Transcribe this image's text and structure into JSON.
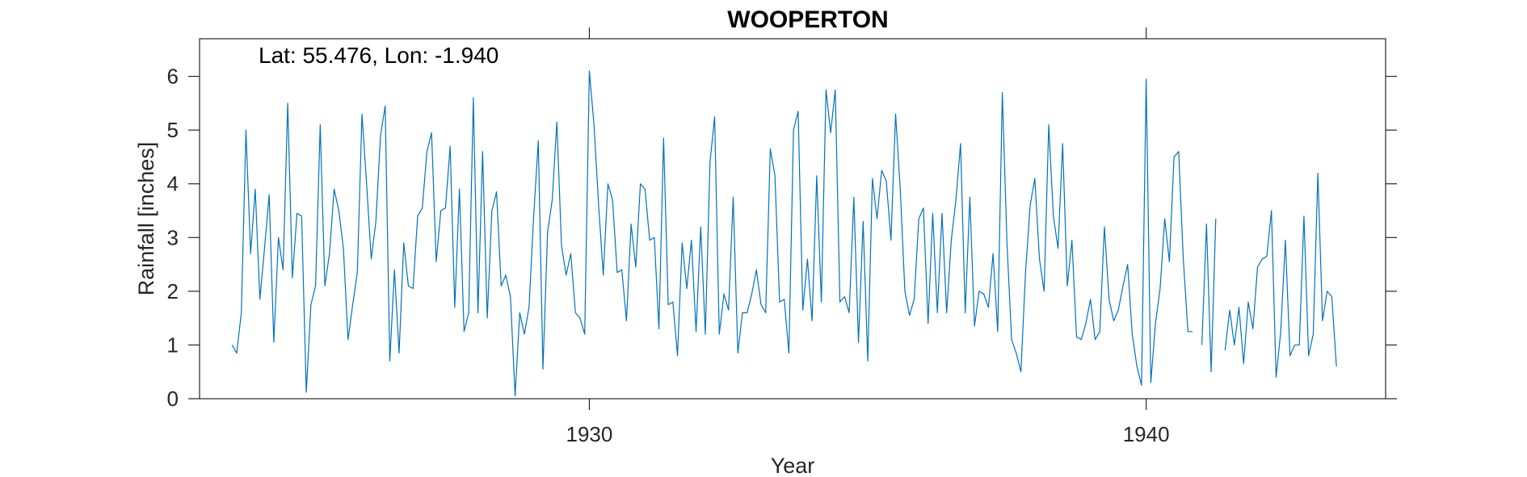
{
  "chart_data": {
    "type": "line",
    "title": "WOOPERTON",
    "xlabel": "Year",
    "ylabel": "Rainfall [inches]",
    "annotation": "Lat: 55.476, Lon: -1.940",
    "xlim": [
      1923.0,
      1944.3
    ],
    "ylim": [
      0,
      6.7
    ],
    "xticks": [
      1930,
      1940
    ],
    "yticks": [
      0,
      1,
      2,
      3,
      4,
      5,
      6
    ],
    "grid": false,
    "color": "#0072BD",
    "series": [
      {
        "start_year": 1923,
        "start_month": 8,
        "values": [
          1.0,
          0.85,
          1.6,
          5.0,
          2.7,
          3.9,
          1.85,
          2.8,
          3.8,
          1.05,
          3.0,
          2.4,
          5.5,
          2.25,
          3.45,
          3.4,
          0.12,
          1.75,
          2.1,
          5.1,
          2.1,
          2.7,
          3.9,
          3.5,
          2.8,
          1.1,
          1.75,
          2.35,
          5.3,
          4.0,
          2.6,
          3.3,
          4.9,
          5.45,
          0.7,
          2.4,
          0.85,
          2.9,
          2.1,
          2.05,
          3.4,
          3.55,
          4.6,
          4.95,
          2.55,
          3.5,
          3.55,
          4.7,
          1.7,
          3.9,
          1.25,
          1.6,
          5.6,
          1.6,
          4.6,
          1.5,
          3.5,
          3.85,
          2.1,
          2.3,
          1.9,
          0.05,
          1.6,
          1.2,
          1.7,
          3.4,
          4.8,
          0.55,
          3.1,
          3.7,
          5.15,
          2.85,
          2.3,
          2.7,
          1.6,
          1.5,
          1.2,
          6.1,
          5.1,
          3.6,
          2.3,
          4.0,
          3.7,
          2.35,
          2.4,
          1.45,
          3.25,
          2.45,
          4.0,
          3.9,
          2.95,
          3.0,
          1.3,
          4.85,
          1.75,
          1.8,
          0.8,
          2.9,
          2.05,
          2.95,
          1.25,
          3.2,
          1.2,
          4.4,
          5.25,
          1.2,
          1.95,
          1.65,
          3.75,
          0.85,
          1.6,
          1.6,
          1.95,
          2.4,
          1.75,
          1.6,
          4.65,
          4.15,
          1.8,
          1.85,
          0.85,
          5.0,
          5.35,
          1.65,
          2.6,
          1.45,
          4.15,
          1.8,
          5.75,
          4.95,
          5.75,
          1.8,
          1.9,
          1.6,
          3.75,
          1.05,
          3.3,
          0.7,
          4.1,
          3.35,
          4.25,
          4.05,
          2.95,
          5.3,
          3.9,
          2.0,
          1.55,
          1.85,
          3.35,
          3.55,
          1.4,
          3.45,
          1.6,
          3.45,
          1.6,
          2.95,
          3.7,
          4.75,
          1.6,
          3.75,
          1.35,
          2.0,
          1.95,
          1.7,
          2.7,
          1.25,
          5.7,
          2.9,
          1.1,
          0.85,
          0.5,
          2.35,
          3.6,
          4.1,
          2.6,
          2.0,
          5.1,
          3.4,
          2.8,
          4.75,
          2.1,
          2.95,
          1.15,
          1.1,
          1.4,
          1.85,
          1.1,
          1.25,
          3.2,
          1.85,
          1.45,
          1.65,
          2.1,
          2.5,
          1.2,
          0.6,
          0.25,
          5.95,
          0.3,
          1.4,
          2.05,
          3.35,
          2.55,
          4.5,
          4.6,
          2.6,
          1.25,
          1.25,
          null,
          1.0,
          3.25,
          0.5,
          3.35,
          null,
          0.9,
          1.65,
          1.0,
          1.7,
          0.65,
          1.8,
          1.3,
          2.45,
          2.6,
          2.65,
          3.5,
          0.4,
          1.25,
          2.95,
          0.8,
          1.0,
          1.0,
          3.4,
          0.8,
          1.2,
          4.2,
          1.45,
          2.0,
          1.9,
          0.6
        ]
      }
    ]
  }
}
